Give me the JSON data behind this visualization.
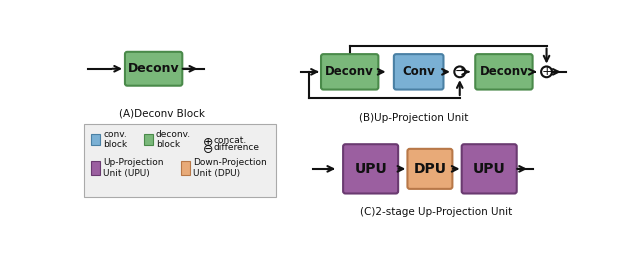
{
  "bg_color": "#ffffff",
  "deconv_color": "#7ab87a",
  "deconv_border": "#4a8a4a",
  "conv_color": "#7ab0d4",
  "conv_border": "#4a80a4",
  "upu_color": "#9b5fa0",
  "upu_border": "#6a3a70",
  "dpu_color": "#e8aa78",
  "dpu_border": "#b87848",
  "legend_bg": "#efefef",
  "legend_border": "#aaaaaa",
  "text_color": "#111111",
  "arrow_color": "#111111",
  "label_A": "(A)Deconv Block",
  "label_B": "(B)Up-Projection Unit",
  "label_C": "(C)2-stage Up-Projection Unit"
}
